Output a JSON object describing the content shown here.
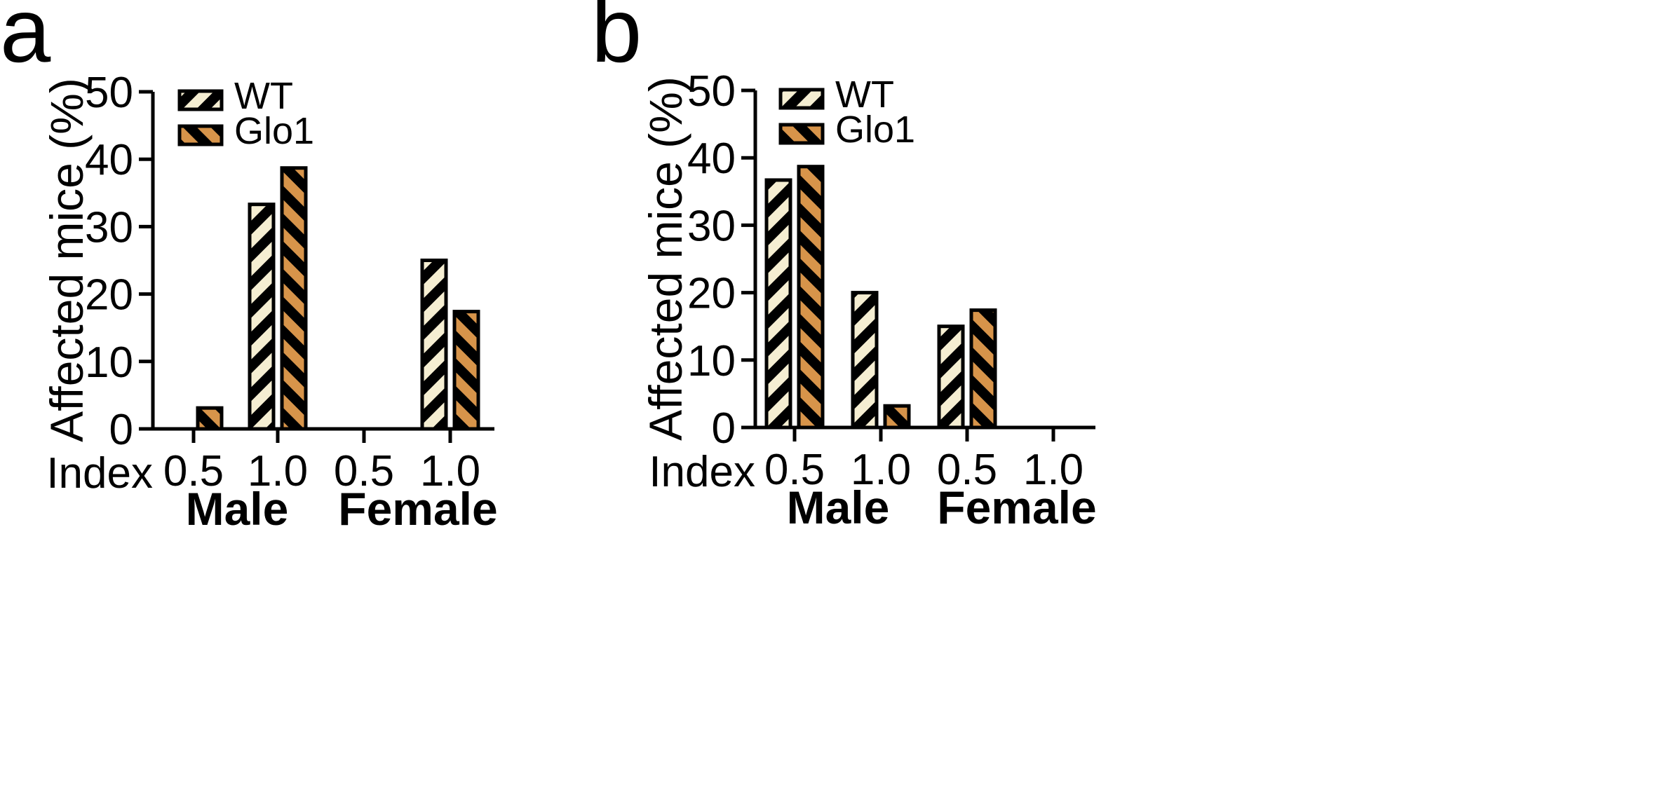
{
  "chart_data": [
    {
      "type": "bar",
      "panel_label": "a",
      "ylabel": "Affected mice (%)",
      "ylim": [
        0,
        50
      ],
      "yticks": [
        "0",
        "10",
        "20",
        "30",
        "40",
        "50"
      ],
      "index_label": "Index",
      "categories": [
        "0.5",
        "1.0",
        "0.5",
        "1.0"
      ],
      "groups": [
        "Male",
        "Female"
      ],
      "series": [
        {
          "name": "WT",
          "color": "#f5eed2",
          "values": [
            0,
            33.3,
            0,
            25.0
          ]
        },
        {
          "name": "Glo1",
          "color": "#d7944a",
          "values": [
            3.1,
            38.7,
            0,
            17.4
          ]
        }
      ],
      "legend_position": "top-left"
    },
    {
      "type": "bar",
      "panel_label": "b",
      "ylabel": "Affected mice (%)",
      "ylim": [
        0,
        50
      ],
      "yticks": [
        "0",
        "10",
        "20",
        "30",
        "40",
        "50"
      ],
      "index_label": "Index",
      "categories": [
        "0.5",
        "1.0",
        "0.5",
        "1.0"
      ],
      "groups": [
        "Male",
        "Female"
      ],
      "series": [
        {
          "name": "WT",
          "color": "#f5eed2",
          "values": [
            36.7,
            20.0,
            15.0,
            0
          ]
        },
        {
          "name": "Glo1",
          "color": "#d7944a",
          "values": [
            38.7,
            3.2,
            17.4,
            0
          ]
        }
      ],
      "legend_position": "top-left"
    }
  ]
}
